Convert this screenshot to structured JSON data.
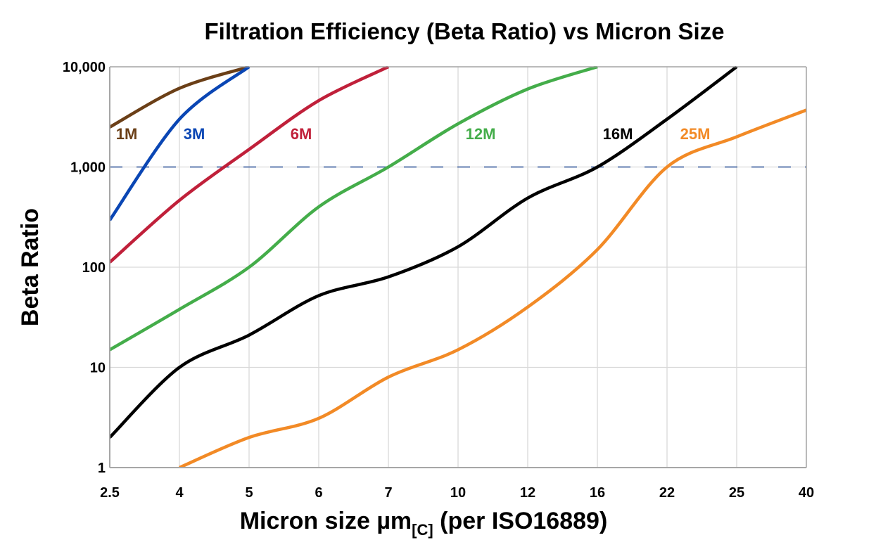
{
  "chart_data": {
    "type": "line",
    "title": "Filtration Efficiency (Beta Ratio) vs Micron Size",
    "xlabel_main": "Micron size µm",
    "xlabel_sub": "[C]",
    "xlabel_tail": " (per ISO16889)",
    "ylabel": "Beta Ratio",
    "y_scale": "log",
    "ylim": [
      1,
      10000
    ],
    "grid": true,
    "categories": [
      "2.5",
      "4",
      "5",
      "6",
      "7",
      "10",
      "12",
      "16",
      "22",
      "25",
      "40"
    ],
    "y_ticks": [
      {
        "value": 1,
        "label": "1"
      },
      {
        "value": 10,
        "label": "10"
      },
      {
        "value": 100,
        "label": "100"
      },
      {
        "value": 1000,
        "label": "1,000"
      },
      {
        "value": 10000,
        "label": "10,000"
      }
    ],
    "reference_line": {
      "value": 1000,
      "color": "#4a6aa5",
      "style": "dashed"
    },
    "series": [
      {
        "name": "1M",
        "color": "#6b3f17",
        "values": [
          2500,
          6100,
          10000,
          null,
          null,
          null,
          null,
          null,
          null,
          null,
          null
        ]
      },
      {
        "name": "3M",
        "color": "#0a46b4",
        "values": [
          295,
          3000,
          10000,
          null,
          null,
          null,
          null,
          null,
          null,
          null,
          null
        ]
      },
      {
        "name": "6M",
        "color": "#c0203a",
        "values": [
          112,
          465,
          1500,
          4600,
          10000,
          null,
          null,
          null,
          null,
          null,
          null
        ]
      },
      {
        "name": "12M",
        "color": "#44ad4a",
        "values": [
          15,
          38,
          100,
          400,
          1000,
          2700,
          6000,
          10000,
          null,
          null,
          null
        ]
      },
      {
        "name": "16M",
        "color": "#000000",
        "values": [
          2,
          10,
          21,
          52,
          80,
          160,
          490,
          1000,
          3000,
          10000,
          null
        ]
      },
      {
        "name": "25M",
        "color": "#f28a26",
        "values": [
          null,
          1,
          2,
          3.1,
          8,
          15,
          40,
          150,
          1000,
          2000,
          3700
        ]
      }
    ]
  }
}
